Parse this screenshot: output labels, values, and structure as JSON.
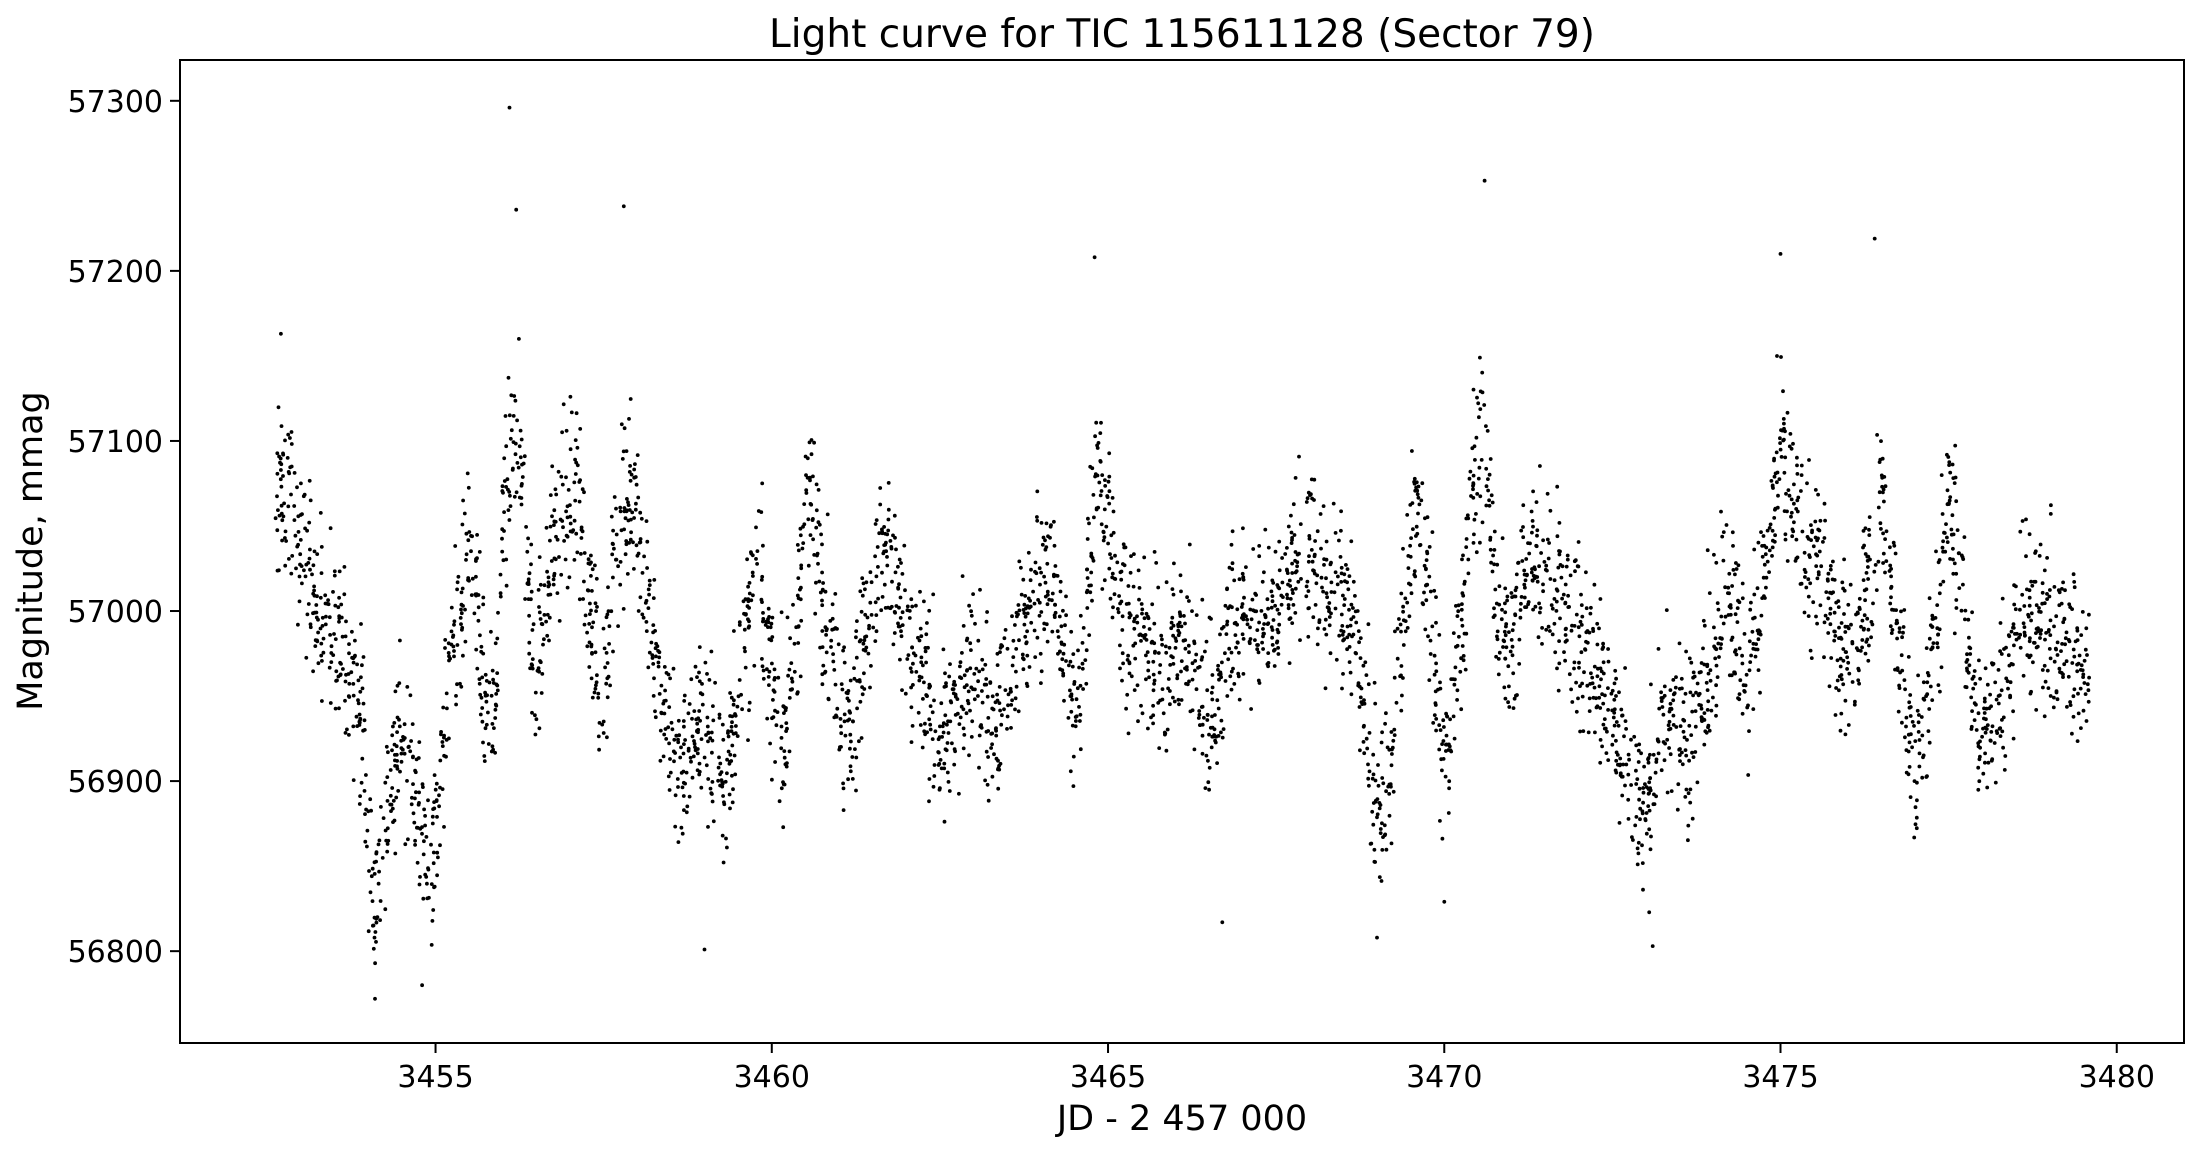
{
  "chart_data": {
    "type": "scatter",
    "title": "Light curve for TIC 115611128 (Sector 79)",
    "xlabel": "JD - 2 457 000",
    "ylabel": "Magnitude, mmag",
    "xlim": [
      3451.2,
      3481.0
    ],
    "ylim": [
      56746,
      57324
    ],
    "xticks": [
      3455,
      3460,
      3465,
      3470,
      3475,
      3480
    ],
    "yticks": [
      56800,
      56900,
      57000,
      57100,
      57200,
      57300
    ],
    "grid": false,
    "marker_color": "#000000",
    "scatter_half_width_mmag": 45,
    "trend": [
      [
        3452.6,
        57060
      ],
      [
        3452.8,
        57070
      ],
      [
        3453.0,
        57040
      ],
      [
        3453.3,
        57000
      ],
      [
        3453.6,
        56980
      ],
      [
        3453.9,
        56940
      ],
      [
        3454.0,
        56870
      ],
      [
        3454.1,
        56830
      ],
      [
        3454.2,
        56860
      ],
      [
        3454.4,
        56910
      ],
      [
        3454.6,
        56930
      ],
      [
        3454.7,
        56900
      ],
      [
        3454.9,
        56840
      ],
      [
        3455.0,
        56870
      ],
      [
        3455.2,
        56960
      ],
      [
        3455.4,
        57010
      ],
      [
        3455.5,
        57040
      ],
      [
        3455.7,
        56960
      ],
      [
        3455.8,
        56920
      ],
      [
        3455.9,
        56950
      ],
      [
        3456.0,
        57050
      ],
      [
        3456.2,
        57110
      ],
      [
        3456.3,
        57080
      ],
      [
        3456.4,
        57000
      ],
      [
        3456.5,
        56960
      ],
      [
        3456.7,
        57030
      ],
      [
        3456.9,
        57060
      ],
      [
        3457.1,
        57070
      ],
      [
        3457.3,
        57000
      ],
      [
        3457.5,
        56950
      ],
      [
        3457.7,
        57040
      ],
      [
        3457.9,
        57080
      ],
      [
        3458.1,
        57030
      ],
      [
        3458.3,
        56960
      ],
      [
        3458.5,
        56920
      ],
      [
        3458.7,
        56910
      ],
      [
        3458.9,
        56940
      ],
      [
        3459.1,
        56920
      ],
      [
        3459.3,
        56900
      ],
      [
        3459.6,
        56980
      ],
      [
        3459.8,
        57020
      ],
      [
        3460.0,
        56960
      ],
      [
        3460.2,
        56920
      ],
      [
        3460.4,
        57000
      ],
      [
        3460.5,
        57080
      ],
      [
        3460.7,
        57030
      ],
      [
        3460.9,
        56980
      ],
      [
        3461.1,
        56930
      ],
      [
        3461.3,
        56960
      ],
      [
        3461.6,
        57040
      ],
      [
        3461.8,
        57020
      ],
      [
        3462.0,
        56970
      ],
      [
        3462.3,
        56960
      ],
      [
        3462.5,
        56920
      ],
      [
        3462.7,
        56930
      ],
      [
        3462.9,
        56960
      ],
      [
        3463.1,
        56970
      ],
      [
        3463.3,
        56930
      ],
      [
        3463.5,
        56950
      ],
      [
        3463.8,
        57000
      ],
      [
        3464.1,
        57030
      ],
      [
        3464.4,
        56960
      ],
      [
        3464.6,
        56940
      ],
      [
        3464.8,
        57080
      ],
      [
        3465.0,
        57060
      ],
      [
        3465.2,
        57000
      ],
      [
        3465.5,
        56980
      ],
      [
        3465.8,
        56960
      ],
      [
        3466.0,
        56990
      ],
      [
        3466.3,
        56960
      ],
      [
        3466.6,
        56940
      ],
      [
        3466.8,
        56990
      ],
      [
        3467.1,
        57000
      ],
      [
        3467.4,
        56990
      ],
      [
        3467.7,
        57020
      ],
      [
        3468.0,
        57040
      ],
      [
        3468.3,
        57000
      ],
      [
        3468.6,
        57010
      ],
      [
        3468.8,
        56940
      ],
      [
        3469.0,
        56880
      ],
      [
        3469.2,
        56900
      ],
      [
        3469.4,
        57000
      ],
      [
        3469.6,
        57070
      ],
      [
        3469.8,
        57010
      ],
      [
        3470.0,
        56900
      ],
      [
        3470.2,
        56960
      ],
      [
        3470.4,
        57080
      ],
      [
        3470.6,
        57100
      ],
      [
        3470.8,
        57000
      ],
      [
        3471.0,
        56980
      ],
      [
        3471.3,
        57030
      ],
      [
        3471.6,
        57020
      ],
      [
        3471.9,
        56990
      ],
      [
        3472.2,
        56970
      ],
      [
        3472.5,
        56940
      ],
      [
        3472.8,
        56900
      ],
      [
        3473.0,
        56880
      ],
      [
        3473.3,
        56950
      ],
      [
        3473.6,
        56920
      ],
      [
        3473.9,
        56960
      ],
      [
        3474.2,
        57020
      ],
      [
        3474.5,
        56960
      ],
      [
        3474.8,
        57030
      ],
      [
        3475.0,
        57090
      ],
      [
        3475.3,
        57040
      ],
      [
        3475.6,
        57030
      ],
      [
        3475.9,
        56970
      ],
      [
        3476.2,
        56990
      ],
      [
        3476.5,
        57070
      ],
      [
        3476.8,
        56960
      ],
      [
        3477.0,
        56900
      ],
      [
        3477.3,
        56990
      ],
      [
        3477.5,
        57060
      ],
      [
        3477.7,
        57020
      ],
      [
        3477.9,
        56930
      ],
      [
        3478.2,
        56940
      ],
      [
        3478.5,
        56990
      ],
      [
        3478.9,
        57000
      ],
      [
        3479.2,
        56980
      ],
      [
        3479.6,
        56960
      ]
    ],
    "outliers": [
      [
        3456.1,
        57296
      ],
      [
        3456.2,
        57236
      ],
      [
        3457.8,
        57238
      ],
      [
        3470.6,
        57253
      ],
      [
        3476.4,
        57219
      ],
      [
        3475.0,
        57210
      ],
      [
        3454.1,
        56772
      ],
      [
        3454.8,
        56780
      ],
      [
        3473.1,
        56803
      ],
      [
        3466.7,
        56817
      ],
      [
        3452.7,
        57163
      ],
      [
        3464.8,
        57208
      ],
      [
        3459.0,
        56801
      ],
      [
        3469.0,
        56808
      ],
      [
        3470.0,
        56829
      ]
    ]
  }
}
